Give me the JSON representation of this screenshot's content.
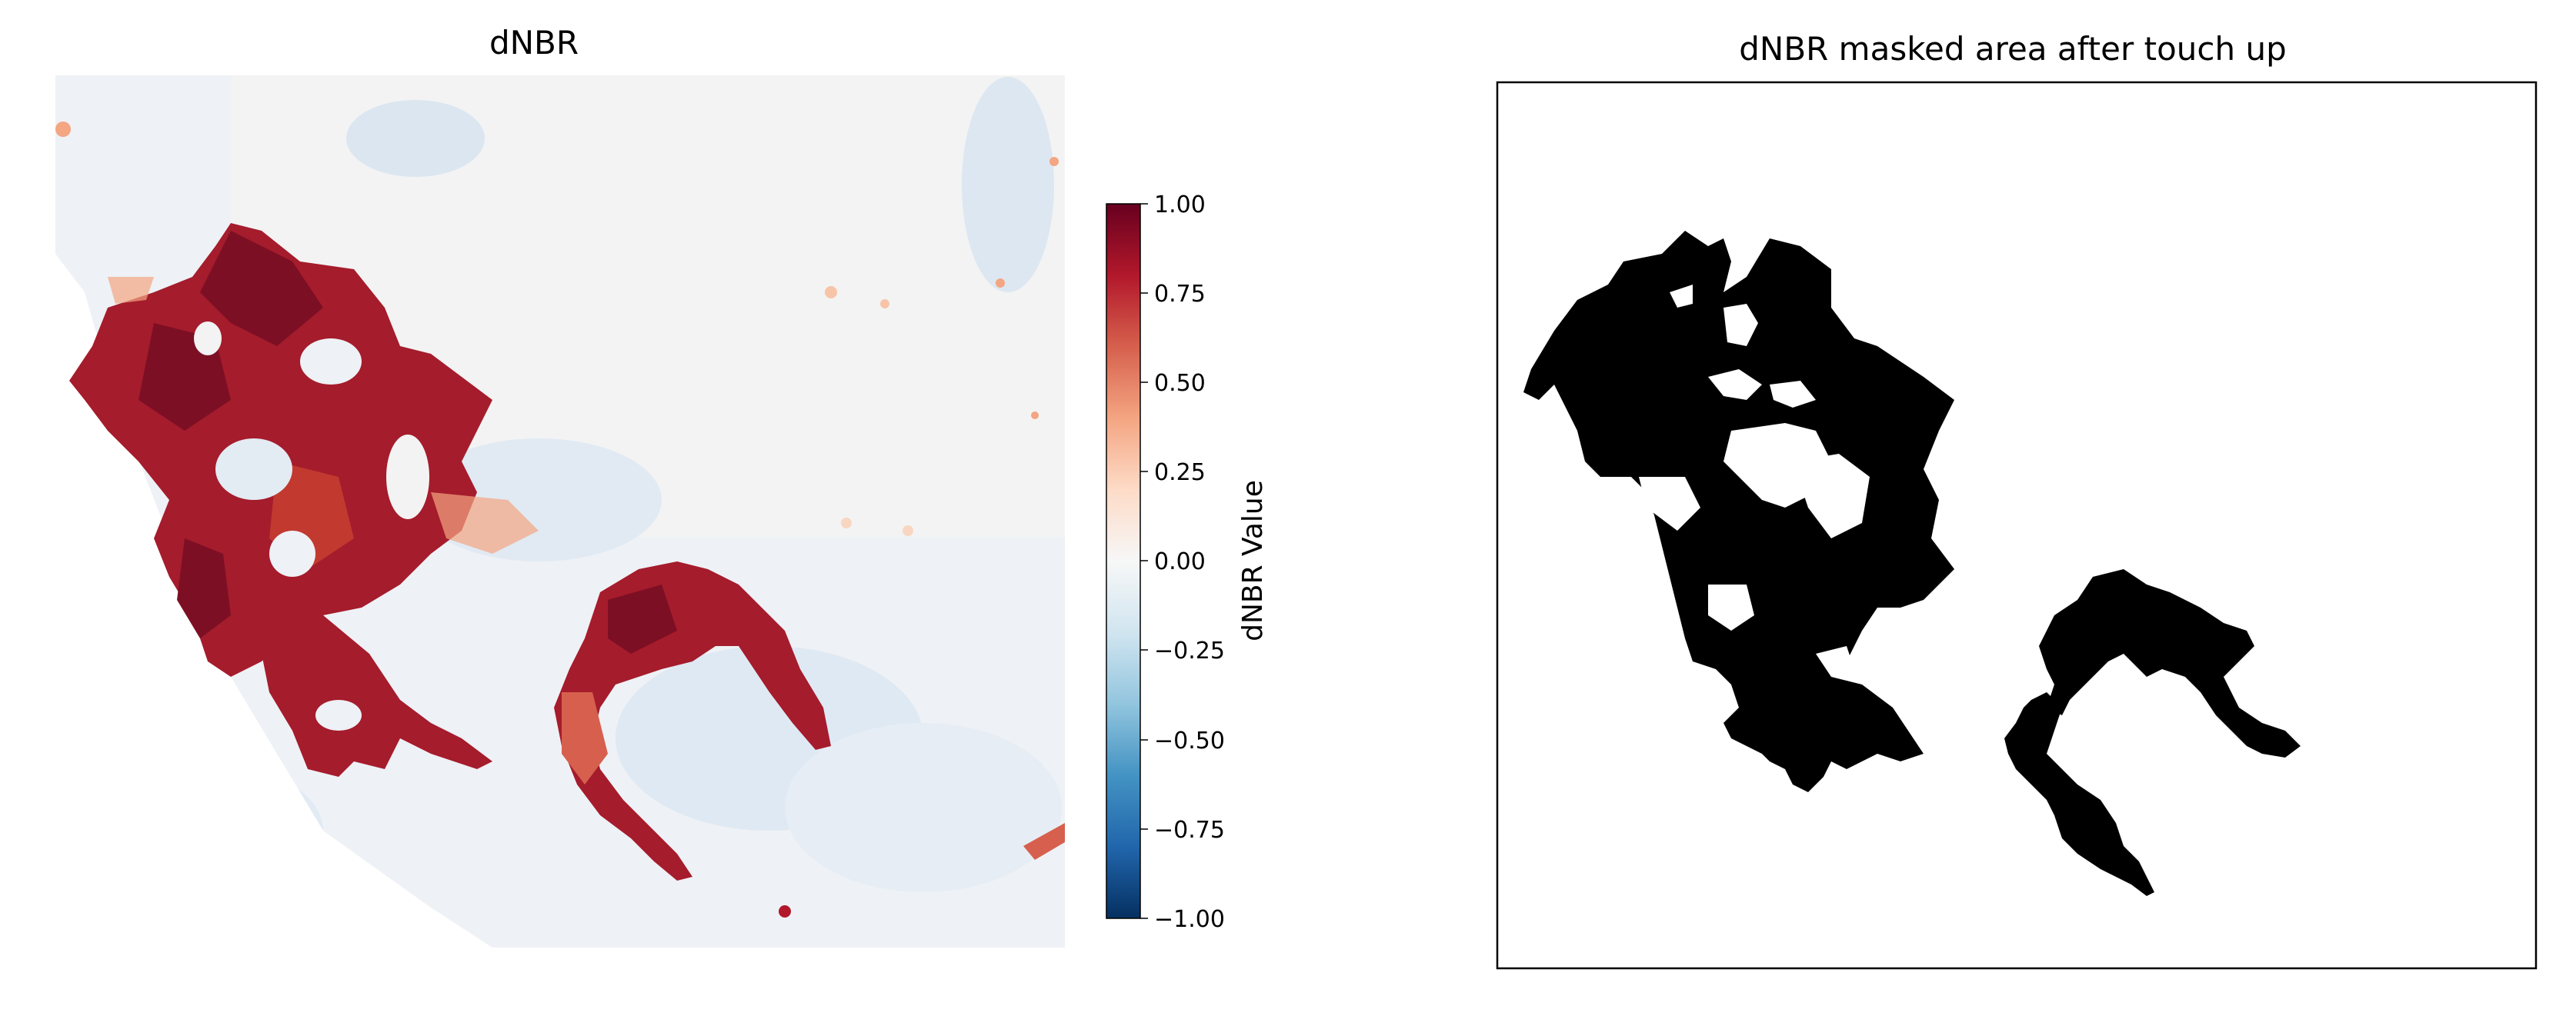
{
  "chart_data": [
    {
      "type": "heatmap",
      "title": "dNBR",
      "colorbar": {
        "label": "dNBR Value",
        "range": [
          -1.0,
          1.0
        ],
        "ticks": [
          "1.00",
          "0.75",
          "0.50",
          "0.25",
          "0.00",
          "−0.25",
          "−0.50",
          "−0.75",
          "−1.00"
        ],
        "colormap": [
          "#053061",
          "#2166ac",
          "#4393c3",
          "#92c5de",
          "#d1e5f0",
          "#f7f7f7",
          "#fddbc7",
          "#f4a582",
          "#d6604d",
          "#b2182b",
          "#67001f"
        ]
      },
      "axes": "off"
    },
    {
      "type": "heatmap",
      "title": "dNBR masked area after touch up",
      "values": "binary mask (burned area in black)",
      "colors": {
        "masked": "#000000",
        "background": "#ffffff"
      }
    }
  ]
}
